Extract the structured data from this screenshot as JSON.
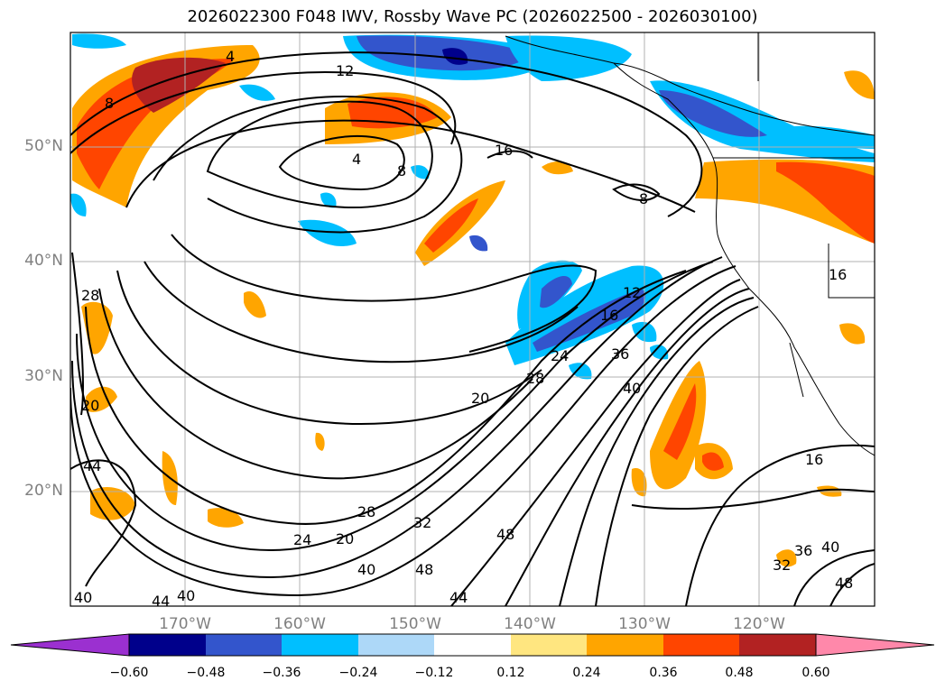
{
  "title": "2026022300 F048 IWV, Rossby Wave PC (2026022500 - 2026030100)",
  "map": {
    "lat_labels": [
      "50°N",
      "40°N",
      "30°N",
      "20°N"
    ],
    "lon_labels": [
      "170°W",
      "160°W",
      "150°W",
      "140°W",
      "130°W",
      "120°W"
    ],
    "contour_labels": [
      "4",
      "12",
      "8",
      "4",
      "8",
      "16",
      "8",
      "16",
      "12",
      "16",
      "24",
      "28",
      "36",
      "40",
      "20",
      "28",
      "24",
      "20",
      "32",
      "40",
      "48",
      "48",
      "44",
      "44",
      "40",
      "40",
      "16",
      "32",
      "36",
      "40",
      "48",
      "28",
      "20",
      "44"
    ]
  },
  "colorbar": {
    "labels": [
      "−0.60",
      "−0.48",
      "−0.36",
      "−0.24",
      "−0.12",
      "0.12",
      "0.24",
      "0.36",
      "0.48",
      "0.60"
    ],
    "colors": [
      "#9b30d0",
      "#00008b",
      "#3355cc",
      "#00bfff",
      "#add8f8",
      "#ffffff",
      "#ffe680",
      "#ffa500",
      "#ff4500",
      "#b22222",
      "#ff88aa"
    ]
  }
}
